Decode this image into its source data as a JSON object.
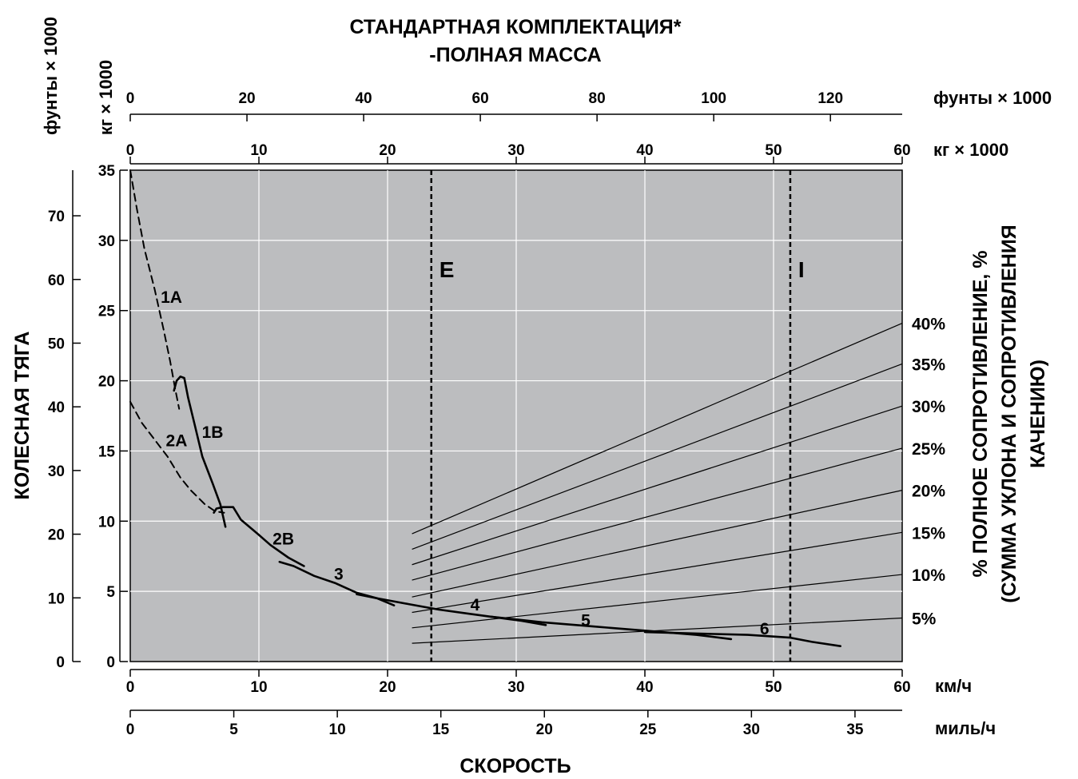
{
  "chart_data": {
    "type": "line",
    "title_line1": "СТАНДАРТНАЯ КОМПЛЕКТАЦИЯ*",
    "title_line2": "-ПОЛНАЯ МАССА",
    "x_axis": {
      "kmh": {
        "unit": "км/ч",
        "range": [
          0,
          60
        ],
        "ticks": [
          0,
          10,
          20,
          30,
          40,
          50,
          60
        ]
      },
      "mph": {
        "unit": "миль/ч",
        "range": [
          0,
          37.28
        ],
        "ticks": [
          0,
          5,
          10,
          15,
          20,
          25,
          30,
          35
        ]
      },
      "title": "СКОРОСТЬ"
    },
    "y_axis": {
      "kg": {
        "unit": "кг × 1000",
        "range": [
          0,
          35
        ],
        "ticks": [
          0,
          5,
          10,
          15,
          20,
          25,
          30,
          35
        ]
      },
      "lb": {
        "unit": "фунты × 1000",
        "range": [
          0,
          77.16
        ],
        "ticks": [
          0,
          10,
          20,
          30,
          40,
          50,
          60,
          70
        ]
      },
      "title": "КОЛЕСНАЯ ТЯГА"
    },
    "top_axis": {
      "lb": {
        "unit": "фунты × 1000",
        "range": [
          0,
          132.3
        ],
        "ticks": [
          0,
          20,
          40,
          60,
          80,
          100,
          120
        ]
      },
      "kg": {
        "unit": "кг × 1000",
        "range": [
          0,
          60
        ],
        "ticks": [
          0,
          10,
          20,
          30,
          40,
          50,
          60
        ]
      }
    },
    "right_axis_title": [
      "% ПОЛНОЕ СОПРОТИВЛЕНИЕ, %",
      "(СУММА УКЛОНА И СОПРОТИВЛЕНИЯ",
      "КАЧЕНИЮ)"
    ],
    "resistance_lines": [
      {
        "label": "5%",
        "y_start": 1.3,
        "y_end": 3.1
      },
      {
        "label": "10%",
        "y_start": 2.4,
        "y_end": 6.2
      },
      {
        "label": "15%",
        "y_start": 3.5,
        "y_end": 9.2
      },
      {
        "label": "20%",
        "y_start": 4.6,
        "y_end": 12.2
      },
      {
        "label": "25%",
        "y_start": 5.8,
        "y_end": 15.2
      },
      {
        "label": "30%",
        "y_start": 6.9,
        "y_end": 18.2
      },
      {
        "label": "35%",
        "y_start": 8.0,
        "y_end": 21.2
      },
      {
        "label": "40%",
        "y_start": 9.1,
        "y_end": 24.1
      }
    ],
    "resistance_x_range_kg": [
      21.9,
      60
    ],
    "vertical_markers": [
      {
        "label": "E",
        "x_kg": 23.4
      },
      {
        "label": "I",
        "x_kg": 51.3
      }
    ],
    "series": [
      {
        "name": "1A",
        "dashed": true,
        "points": [
          [
            0,
            35
          ],
          [
            0.5,
            32.3
          ],
          [
            1.1,
            29.4
          ],
          [
            1.9,
            26.5
          ],
          [
            2.6,
            23.6
          ],
          [
            3.1,
            21.4
          ],
          [
            3.5,
            19.4
          ],
          [
            3.8,
            18.0
          ]
        ],
        "label_pos": [
          3.2,
          26.0
        ]
      },
      {
        "name": "1B",
        "dashed": false,
        "points": [
          [
            3.4,
            19.3
          ],
          [
            3.6,
            20.0
          ],
          [
            3.9,
            20.3
          ],
          [
            4.2,
            20.2
          ],
          [
            4.5,
            18.8
          ],
          [
            5.0,
            16.9
          ],
          [
            5.6,
            14.6
          ],
          [
            6.4,
            12.7
          ],
          [
            7.0,
            11.2
          ],
          [
            7.4,
            9.6
          ]
        ],
        "label_pos": [
          6.4,
          16.4
        ]
      },
      {
        "name": "2A",
        "dashed": true,
        "points": [
          [
            0,
            18.5
          ],
          [
            0.9,
            17.0
          ],
          [
            1.9,
            15.8
          ],
          [
            2.9,
            14.6
          ],
          [
            3.9,
            13.1
          ],
          [
            4.7,
            12.2
          ],
          [
            5.8,
            11.2
          ],
          [
            6.6,
            10.7
          ],
          [
            7.3,
            10.6
          ]
        ],
        "label_pos": [
          3.6,
          15.8
        ]
      },
      {
        "name": "2B",
        "dashed": false,
        "points": [
          [
            6.5,
            10.6
          ],
          [
            6.7,
            10.9
          ],
          [
            7.2,
            11.0
          ],
          [
            7.6,
            11.0
          ],
          [
            8.0,
            11.0
          ],
          [
            8.6,
            10.1
          ],
          [
            9.9,
            9.1
          ],
          [
            10.9,
            8.3
          ],
          [
            12.3,
            7.4
          ],
          [
            13.5,
            6.8
          ]
        ],
        "label_pos": [
          11.9,
          8.8
        ]
      },
      {
        "name": "3",
        "dashed": false,
        "points": [
          [
            11.6,
            7.1
          ],
          [
            12.7,
            6.8
          ],
          [
            14.3,
            6.1
          ],
          [
            15.9,
            5.6
          ],
          [
            17.6,
            4.9
          ],
          [
            19.2,
            4.5
          ],
          [
            20.5,
            4.0
          ]
        ],
        "label_pos": [
          16.2,
          6.3
        ]
      },
      {
        "name": "4",
        "dashed": false,
        "points": [
          [
            17.6,
            4.8
          ],
          [
            19.2,
            4.5
          ],
          [
            21.6,
            4.1
          ],
          [
            24.0,
            3.7
          ],
          [
            26.4,
            3.4
          ],
          [
            28.0,
            3.2
          ],
          [
            30.4,
            2.9
          ],
          [
            32.3,
            2.6
          ]
        ],
        "label_pos": [
          26.8,
          4.1
        ]
      },
      {
        "name": "5",
        "dashed": false,
        "points": [
          [
            28.0,
            3.2
          ],
          [
            32.0,
            2.8
          ],
          [
            36.0,
            2.5
          ],
          [
            40.0,
            2.2
          ],
          [
            44.0,
            1.9
          ],
          [
            46.7,
            1.6
          ]
        ],
        "label_pos": [
          35.4,
          3.0
        ]
      },
      {
        "name": "6",
        "dashed": false,
        "points": [
          [
            40.0,
            2.1
          ],
          [
            44.0,
            2.0
          ],
          [
            48.0,
            1.9
          ],
          [
            51.3,
            1.7
          ],
          [
            53.0,
            1.4
          ],
          [
            55.2,
            1.1
          ]
        ],
        "label_pos": [
          49.3,
          2.4
        ]
      }
    ]
  }
}
